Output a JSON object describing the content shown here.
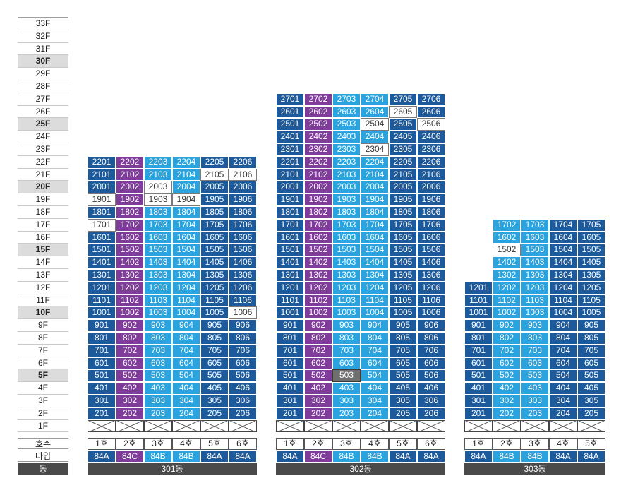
{
  "floor_axis": {
    "floors": [
      "33F",
      "32F",
      "31F",
      "30F",
      "29F",
      "28F",
      "27F",
      "26F",
      "25F",
      "24F",
      "23F",
      "22F",
      "21F",
      "20F",
      "19F",
      "18F",
      "17F",
      "16F",
      "15F",
      "14F",
      "13F",
      "12F",
      "11F",
      "10F",
      "9F",
      "8F",
      "7F",
      "6F",
      "5F",
      "4F",
      "3F",
      "2F",
      "1F"
    ],
    "highlighted": [
      "30F",
      "25F",
      "20F",
      "15F",
      "10F",
      "5F"
    ]
  },
  "legend": {
    "unit_label": "호수",
    "type_label": "타입",
    "building_label": "동"
  },
  "colors": {
    "84A": "#1d5a9c",
    "84C": "#7f3c9b",
    "84B": "#2aa3de",
    "unavailable": "#ffffff",
    "special": "#6f6f6f"
  },
  "buildings": [
    {
      "name": "301동",
      "unit_labels": [
        "1호",
        "2호",
        "3호",
        "4호",
        "5호",
        "6호"
      ],
      "unit_types": [
        "84A",
        "84C",
        "84B",
        "84B",
        "84A",
        "84A"
      ],
      "top_floor": 22,
      "white_units": [
        "2105",
        "2106",
        "2003",
        "1901",
        "1903",
        "1904",
        "1701",
        "1006"
      ],
      "gray_units": []
    },
    {
      "name": "302동",
      "unit_labels": [
        "1호",
        "2호",
        "3호",
        "4호",
        "5호",
        "6호"
      ],
      "unit_types": [
        "84A",
        "84C",
        "84B",
        "84B",
        "84A",
        "84A"
      ],
      "top_floor": 27,
      "white_units": [
        "2605",
        "2504",
        "2506",
        "2304"
      ],
      "gray_units": [
        "503"
      ]
    },
    {
      "name": "303동",
      "unit_labels": [
        "1호",
        "2호",
        "3호",
        "4호",
        "5호"
      ],
      "unit_types": [
        "84A",
        "84B",
        "84B",
        "84A",
        "84A"
      ],
      "top_floor": 17,
      "short_column_top_floor": 12,
      "short_column_index": 0,
      "white_units": [
        "1502"
      ],
      "gray_units": []
    }
  ]
}
